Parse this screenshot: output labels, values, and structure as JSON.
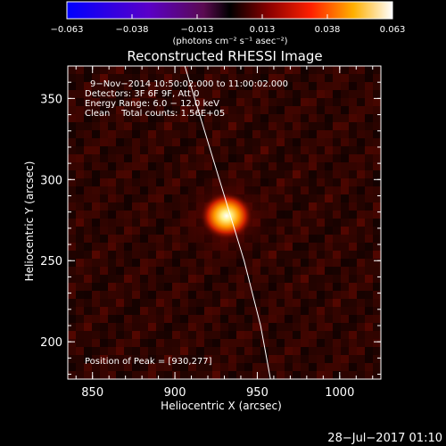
{
  "colorbar": {
    "ticks": [
      "−0.063",
      "−0.038",
      "−0.013",
      "0.013",
      "0.038",
      "0.063"
    ],
    "units": "(photons cm⁻² s⁻¹ asec⁻²)"
  },
  "title": "Reconstructed RHESSI Image",
  "info": {
    "line1": "9−Nov−2014 10:50:02.000 to 11:00:02.000",
    "line2": "Detectors: 3F 6F 9F, Att 0",
    "line3": "Energy Range: 6.0 − 12.0 keV",
    "line4": "Clean    Total counts: 1.56E+05"
  },
  "peak_label": "Position of Peak = [930,277]",
  "footer_date": "28−Jul−2017 01:10",
  "colors": {
    "background": "#000000",
    "axis": "#ffffff",
    "limb": "#ffffff"
  },
  "chart_data": {
    "type": "heatmap",
    "title": "Reconstructed RHESSI Image",
    "xlabel": "Heliocentric X (arcsec)",
    "ylabel": "Heliocentric Y (arcsec)",
    "xlim": [
      835,
      1025
    ],
    "ylim": [
      177,
      370
    ],
    "xticks": [
      850,
      900,
      950,
      1000
    ],
    "yticks": [
      200,
      250,
      300,
      350
    ],
    "colormap_range": [
      -0.063,
      0.063
    ],
    "peak": [
      930,
      277
    ],
    "limb": [
      [
        906,
        370
      ],
      [
        918,
        330
      ],
      [
        930,
        290
      ],
      [
        942,
        250
      ],
      [
        952,
        210
      ],
      [
        958,
        177
      ]
    ]
  }
}
